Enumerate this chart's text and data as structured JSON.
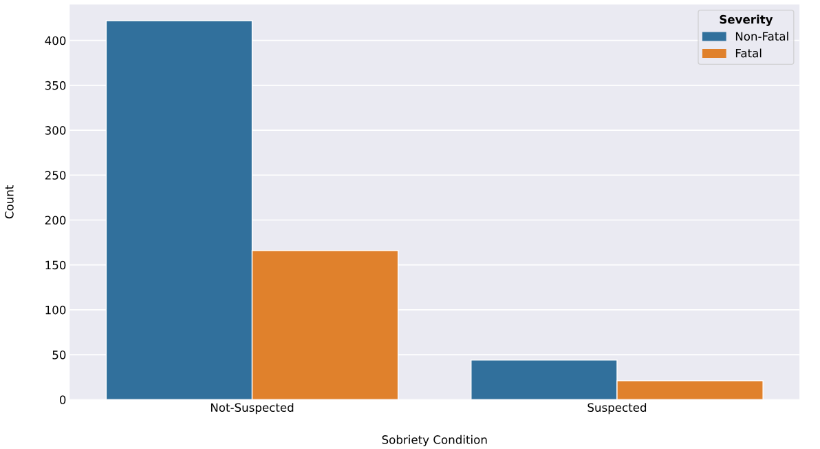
{
  "chart_data": {
    "type": "bar",
    "xlabel": "Sobriety Condition",
    "ylabel": "Count",
    "categories": [
      "Not-Suspected",
      "Suspected"
    ],
    "series": [
      {
        "name": "Non-Fatal",
        "color": "#31709c",
        "values": [
          422,
          44
        ]
      },
      {
        "name": "Fatal",
        "color": "#e0812c",
        "values": [
          166,
          21
        ]
      }
    ],
    "legend_title": "Severity",
    "legend": "top right",
    "ylim": [
      0,
      440
    ],
    "yticks": [
      0,
      50,
      100,
      150,
      200,
      250,
      300,
      350,
      400
    ],
    "grid": "y"
  }
}
